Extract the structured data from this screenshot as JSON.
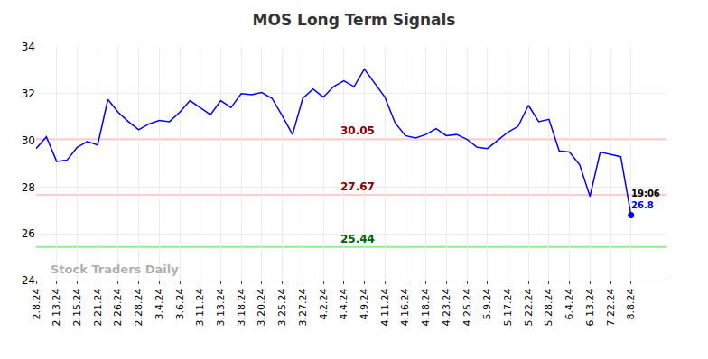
{
  "chart_data": {
    "type": "line",
    "title": "MOS Long Term Signals",
    "categories": [
      "2.8.24",
      null,
      "2.13.24",
      null,
      "2.15.24",
      null,
      "2.21.24",
      null,
      "2.26.24",
      null,
      "2.28.24",
      null,
      "3.4.24",
      null,
      "3.6.24",
      null,
      "3.11.24",
      null,
      "3.13.24",
      null,
      "3.18.24",
      null,
      "3.20.24",
      null,
      "3.25.24",
      null,
      "3.27.24",
      null,
      "4.2.24",
      null,
      "4.4.24",
      null,
      "4.9.24",
      null,
      "4.11.24",
      null,
      "4.16.24",
      null,
      "4.18.24",
      null,
      "4.23.24",
      null,
      "4.25.24",
      null,
      "5.9.24",
      null,
      "5.17.24",
      null,
      "5.22.24",
      null,
      "5.28.24",
      null,
      "6.4.24",
      null,
      "6.13.24",
      null,
      "7.22.24",
      null,
      "8.8.24"
    ],
    "values": [
      29.65,
      30.15,
      29.1,
      29.15,
      29.7,
      29.95,
      29.8,
      31.75,
      31.2,
      30.8,
      30.45,
      30.7,
      30.85,
      30.8,
      31.2,
      31.7,
      31.4,
      31.1,
      31.7,
      31.4,
      32.0,
      31.95,
      32.05,
      31.8,
      31.05,
      30.25,
      31.8,
      32.2,
      31.85,
      32.3,
      32.55,
      32.3,
      33.05,
      32.45,
      31.85,
      30.75,
      30.2,
      30.1,
      30.25,
      30.5,
      30.2,
      30.25,
      30.05,
      29.7,
      29.65,
      30.0,
      30.35,
      30.6,
      31.5,
      30.8,
      30.9,
      29.55,
      29.5,
      28.95,
      27.6,
      29.5,
      29.4,
      29.3,
      26.8
    ],
    "color": "#0000ff",
    "levels": [
      {
        "value": 30.05,
        "label": "30.05",
        "color": "#ffcccc",
        "label_color": "#8b0000"
      },
      {
        "value": 27.67,
        "label": "27.67",
        "color": "#ffcccc",
        "label_color": "#8b0000"
      },
      {
        "value": 25.44,
        "label": "25.44",
        "color": "#90ee90",
        "label_color": "#006400"
      }
    ],
    "last_point": {
      "time": "19:06",
      "value": 26.8,
      "label": "26.8"
    },
    "watermark": "Stock Traders Daily",
    "ylim": [
      24,
      34
    ],
    "yticks": [
      24,
      26,
      28,
      30,
      32,
      34
    ],
    "grid": true
  }
}
